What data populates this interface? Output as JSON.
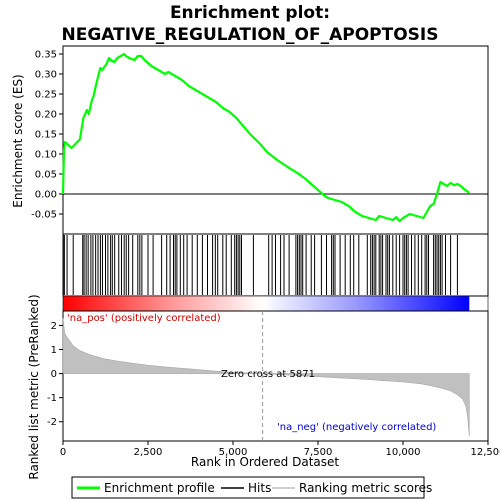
{
  "chart_data": {
    "type": "line",
    "title_line1": "Enrichment plot:",
    "title_line2": "NEGATIVE_REGULATION_OF_APOPTOSIS",
    "xlabel": "Rank in Ordered Dataset",
    "ylabel_top": "Enrichment score (ES)",
    "ylabel_bottom": "Ranked list metric (PreRanked)",
    "xlim": [
      0,
      12500
    ],
    "n_genes": 11950,
    "x_ticks": [
      0,
      2500,
      5000,
      7500,
      10000,
      12500
    ],
    "x_tick_labels": [
      "0",
      "2,500",
      "5,000",
      "7,500",
      "10,000",
      "12,500"
    ],
    "es_ylim": [
      -0.1,
      0.37
    ],
    "es_ticks": [
      -0.05,
      0.0,
      0.05,
      0.1,
      0.15,
      0.2,
      0.25,
      0.3,
      0.35
    ],
    "es_tick_labels": [
      "-0.05",
      "0.00",
      "0.05",
      "0.10",
      "0.15",
      "0.20",
      "0.25",
      "0.30",
      "0.35"
    ],
    "metric_ylim": [
      -2.8,
      2.6
    ],
    "metric_ticks": [
      -2,
      -1,
      0,
      1,
      2
    ],
    "metric_tick_labels": [
      "-2",
      "-1",
      "0",
      "1",
      "2"
    ],
    "enrichment_profile": {
      "name": "Enrichment profile",
      "color": "#00ff00",
      "x": [
        0,
        30,
        60,
        250,
        500,
        540,
        600,
        700,
        760,
        850,
        900,
        950,
        1050,
        1100,
        1150,
        1280,
        1350,
        1400,
        1500,
        1600,
        1700,
        1800,
        1850,
        1950,
        2100,
        2200,
        2300,
        2400,
        2600,
        2800,
        3000,
        3100,
        3200,
        3300,
        3500,
        3700,
        3900,
        4100,
        4300,
        4500,
        4700,
        4900,
        5100,
        5300,
        5500,
        5800,
        6000,
        6300,
        6600,
        6900,
        7100,
        7300,
        7500,
        7700,
        7800,
        8000,
        8200,
        8400,
        8600,
        8800,
        9000,
        9200,
        9300,
        9500,
        9700,
        9800,
        9900,
        10000,
        10100,
        10200,
        10400,
        10600,
        10700,
        10800,
        10900,
        11000,
        11100,
        11200,
        11300,
        11400,
        11500,
        11600,
        11700,
        11800,
        11950
      ],
      "y": [
        0.0,
        0.11,
        0.13,
        0.115,
        0.137,
        0.16,
        0.19,
        0.21,
        0.2,
        0.235,
        0.245,
        0.265,
        0.3,
        0.315,
        0.31,
        0.325,
        0.34,
        0.335,
        0.33,
        0.34,
        0.345,
        0.35,
        0.345,
        0.34,
        0.335,
        0.345,
        0.345,
        0.335,
        0.32,
        0.31,
        0.3,
        0.305,
        0.3,
        0.295,
        0.285,
        0.27,
        0.26,
        0.25,
        0.24,
        0.23,
        0.215,
        0.205,
        0.19,
        0.17,
        0.15,
        0.125,
        0.105,
        0.085,
        0.068,
        0.052,
        0.04,
        0.025,
        0.01,
        -0.005,
        -0.01,
        -0.015,
        -0.02,
        -0.03,
        -0.045,
        -0.055,
        -0.06,
        -0.065,
        -0.055,
        -0.06,
        -0.065,
        -0.058,
        -0.068,
        -0.06,
        -0.055,
        -0.05,
        -0.055,
        -0.06,
        -0.045,
        -0.03,
        -0.025,
        0.0,
        0.03,
        0.025,
        0.02,
        0.028,
        0.022,
        0.025,
        0.02,
        0.012,
        0.003
      ]
    },
    "hits": {
      "name": "Hits",
      "color": "#000000",
      "positions": [
        10,
        40,
        120,
        300,
        580,
        620,
        680,
        740,
        820,
        880,
        960,
        1030,
        1100,
        1160,
        1250,
        1320,
        1400,
        1450,
        1520,
        1640,
        1720,
        1800,
        1860,
        1930,
        2050,
        2200,
        2260,
        2320,
        2500,
        2650,
        2900,
        3050,
        3150,
        3250,
        3300,
        3350,
        3450,
        3550,
        3650,
        3800,
        3950,
        4100,
        4250,
        4400,
        4480,
        4550,
        4700,
        4800,
        4950,
        5050,
        5100,
        5150,
        5200,
        5250,
        5600,
        6050,
        6150,
        6250,
        6400,
        6500,
        6650,
        6850,
        6900,
        6950,
        7000,
        7050,
        7150,
        7300,
        7400,
        7600,
        7750,
        7900,
        7950,
        8000,
        8150,
        8300,
        8450,
        8550,
        8700,
        8950,
        9050,
        9100,
        9150,
        9200,
        9300,
        9350,
        9400,
        9500,
        9550,
        9600,
        9700,
        9800,
        9900,
        10000,
        10050,
        10100,
        10150,
        10250,
        10350,
        10450,
        10550,
        10650,
        10700,
        10750,
        10900,
        10950,
        11000,
        11050,
        11100,
        11150,
        11250,
        11400,
        11600
      ]
    },
    "ranking_metric": {
      "name": "Ranking metric scores",
      "color": "#c0c0c0",
      "x": [
        0,
        50,
        100,
        200,
        300,
        500,
        800,
        1200,
        1600,
        2000,
        2500,
        3000,
        3500,
        4000,
        4500,
        5000,
        5500,
        5871,
        6500,
        7000,
        7500,
        8000,
        8500,
        9000,
        9500,
        10000,
        10500,
        10800,
        11000,
        11200,
        11400,
        11600,
        11750,
        11850,
        11900,
        11950
      ],
      "y": [
        2.3,
        1.7,
        1.55,
        1.35,
        1.15,
        0.95,
        0.78,
        0.62,
        0.52,
        0.44,
        0.35,
        0.28,
        0.22,
        0.16,
        0.1,
        0.05,
        0.02,
        0.0,
        -0.05,
        -0.09,
        -0.13,
        -0.17,
        -0.21,
        -0.25,
        -0.3,
        -0.35,
        -0.42,
        -0.5,
        -0.56,
        -0.63,
        -0.72,
        -0.88,
        -1.05,
        -1.35,
        -1.8,
        -2.6
      ]
    },
    "zero_cross_rank": 5871,
    "zero_cross_label": "Zero cross at 5871",
    "pos_label": "'na_pos' (positively correlated)",
    "neg_label": "'na_neg' (negatively correlated)",
    "legend": {
      "placement": "bottom",
      "items": [
        {
          "label": "Enrichment profile",
          "color": "#00ff00"
        },
        {
          "label": "Hits",
          "color": "#000000"
        },
        {
          "label": "Ranking metric scores",
          "color": "#c0c0c0"
        }
      ]
    },
    "colorbar": {
      "pos_color": "#ff0000",
      "mid_color": "#ffffff",
      "neg_color": "#0000ff"
    }
  }
}
